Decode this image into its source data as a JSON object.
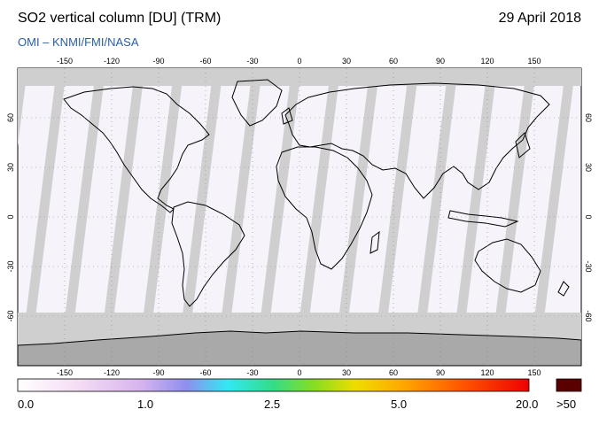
{
  "header": {
    "title": "SO2 vertical column [DU] (TRM)",
    "date": "29 April 2018",
    "credit": "OMI  –  KNMI/FMI/NASA"
  },
  "map": {
    "lon_ticks": [
      "-150",
      "-120",
      "-90",
      "-60",
      "-30",
      "0",
      "30",
      "60",
      "90",
      "120",
      "150"
    ],
    "lat_ticks": [
      "60",
      "30",
      "0",
      "-30",
      "-60"
    ],
    "colors": {
      "no_data": "#cfcfcf",
      "land_no_data": "#a9a9a9",
      "low_value": "#f6f3fa",
      "coast": "#000000"
    }
  },
  "colorbar": {
    "labels": [
      "0.0",
      "1.0",
      "2.5",
      "5.0",
      "20.0"
    ],
    "overflow_label": ">50",
    "overflow_color": "#5a0000"
  }
}
